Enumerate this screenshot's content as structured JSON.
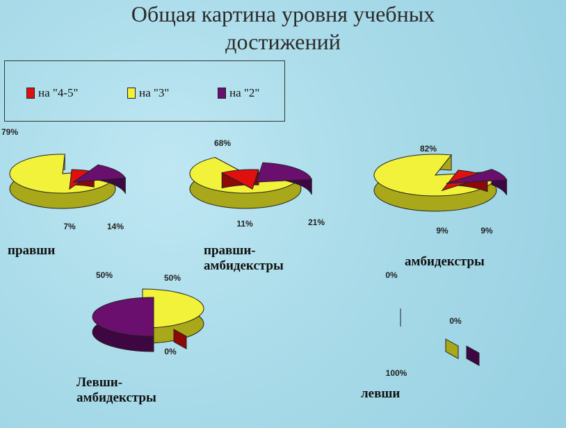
{
  "title_line1": "Общая картина уровня учебных",
  "title_line2": "достижений",
  "legend": [
    {
      "label": "на \"4-5\"",
      "color": "#e01010"
    },
    {
      "label": "на \"3\"",
      "color": "#f2f23a"
    },
    {
      "label": "на \"2\"",
      "color": "#6a0f6e"
    }
  ],
  "chart_data": [
    {
      "type": "pie",
      "title": "правши",
      "categories": [
        "на \"4-5\"",
        "на \"3\"",
        "на \"2\""
      ],
      "values": [
        7,
        79,
        14
      ],
      "labels": [
        "7%",
        "79%",
        "14%"
      ]
    },
    {
      "type": "pie",
      "title": "правши-\nамбидекстры",
      "categories": [
        "на \"4-5\"",
        "на \"3\"",
        "на \"2\""
      ],
      "values": [
        11,
        68,
        21
      ],
      "labels": [
        "11%",
        "68%",
        "21%"
      ]
    },
    {
      "type": "pie",
      "title": "амбидекстры",
      "categories": [
        "на \"4-5\"",
        "на \"3\"",
        "на \"2\""
      ],
      "values": [
        9,
        82,
        9
      ],
      "labels": [
        "9%",
        "82%",
        "9%"
      ]
    },
    {
      "type": "pie",
      "title": "Левши-\nамбидекстры",
      "categories": [
        "на \"4-5\"",
        "на \"3\"",
        "на \"2\""
      ],
      "values": [
        0,
        50,
        50
      ],
      "labels": [
        "0%",
        "50%",
        "50%"
      ]
    },
    {
      "type": "pie",
      "title": "левши",
      "categories": [
        "на \"4-5\"",
        "на \"3\"",
        "на \"2\""
      ],
      "values": [
        100,
        0,
        0
      ],
      "labels": [
        "100%",
        "0%",
        "0%"
      ]
    }
  ]
}
